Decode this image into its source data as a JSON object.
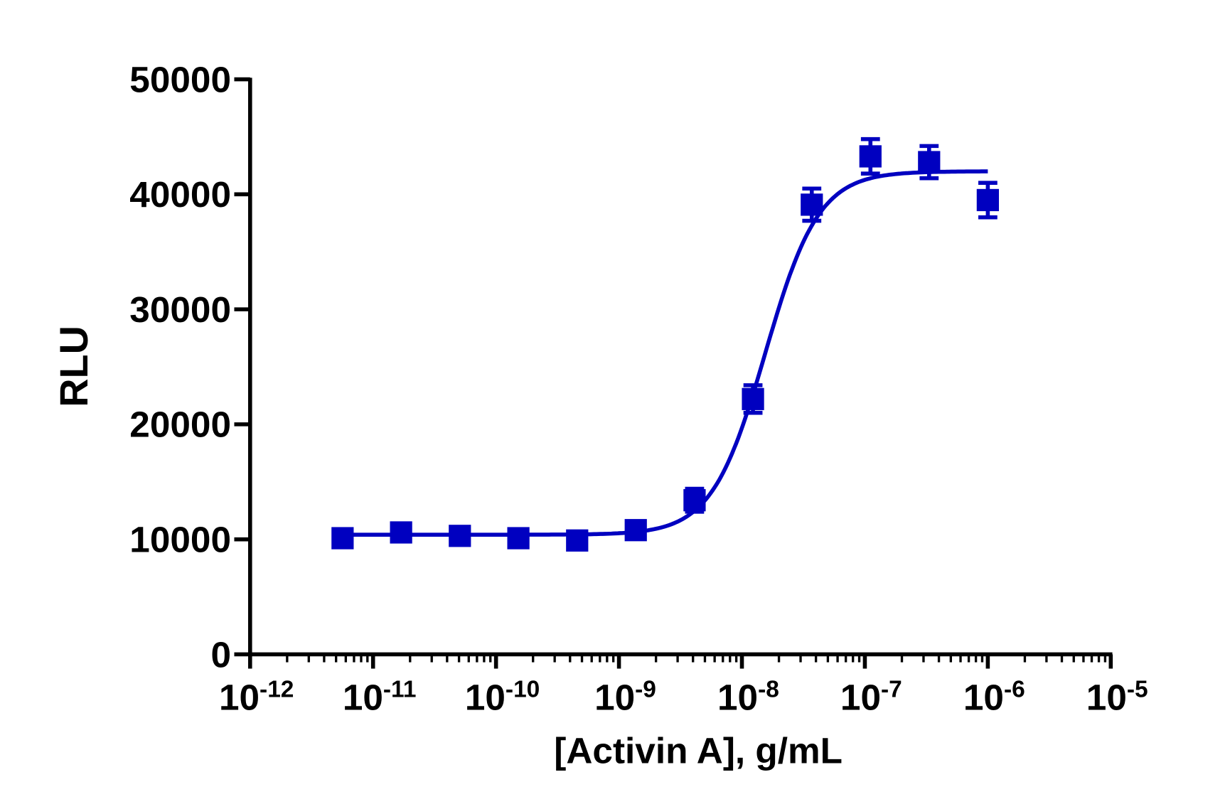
{
  "chart_data": {
    "type": "scatter",
    "title": "",
    "xlabel": "[Activin A], g/mL",
    "ylabel": "RLU",
    "x_scale": "log",
    "xlim": [
      1e-12,
      1e-05
    ],
    "ylim": [
      0,
      50000
    ],
    "x_ticks": [
      {
        "base": "10",
        "exp": "-12"
      },
      {
        "base": "10",
        "exp": "-11"
      },
      {
        "base": "10",
        "exp": "-10"
      },
      {
        "base": "10",
        "exp": "-9"
      },
      {
        "base": "10",
        "exp": "-8"
      },
      {
        "base": "10",
        "exp": "-7"
      },
      {
        "base": "10",
        "exp": "-6"
      },
      {
        "base": "10",
        "exp": "-5"
      }
    ],
    "y_ticks": [
      "0",
      "10000",
      "20000",
      "30000",
      "40000",
      "50000"
    ],
    "grid": false,
    "color": "#0000c0",
    "marker": "square",
    "points": {
      "x": [
        5.65e-12,
        1.69e-11,
        5.08e-11,
        1.52e-10,
        4.57e-10,
        1.37e-09,
        4.12e-09,
        1.23e-08,
        3.7e-08,
        1.11e-07,
        3.33e-07,
        1e-06
      ],
      "y": [
        10100,
        10600,
        10300,
        10100,
        9900,
        10800,
        13400,
        22200,
        39100,
        43300,
        42800,
        39500
      ],
      "error": [
        400,
        400,
        400,
        400,
        500,
        400,
        1000,
        1200,
        1400,
        1500,
        1400,
        1500
      ]
    },
    "fit": {
      "model": "4PL",
      "bottom": 10400,
      "top": 42000,
      "ec50": 1.55e-08,
      "hill": 2.0
    }
  }
}
